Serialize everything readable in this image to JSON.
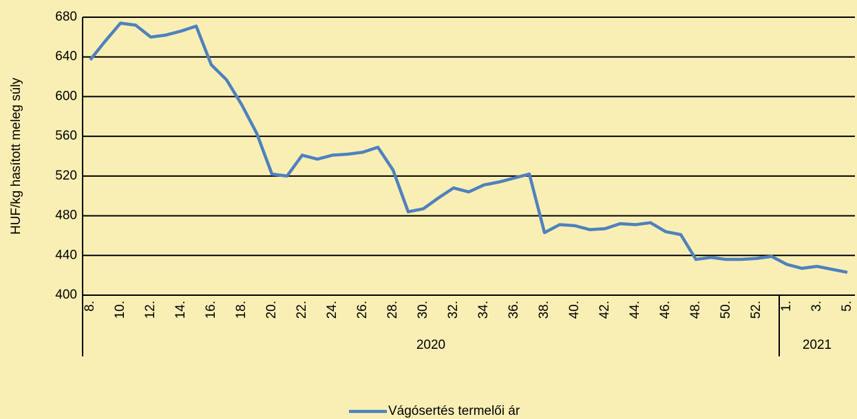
{
  "chart_data": {
    "type": "line",
    "y_label": "HUF/kg hasított meleg súly",
    "categories": [
      "8.",
      null,
      "10.",
      null,
      "12.",
      null,
      "14.",
      null,
      "16.",
      null,
      "18.",
      null,
      "20.",
      null,
      "22.",
      null,
      "24.",
      null,
      "26.",
      null,
      "28.",
      null,
      "30.",
      null,
      "32.",
      null,
      "34.",
      null,
      "36.",
      null,
      "38.",
      null,
      "40.",
      null,
      "42.",
      null,
      "44.",
      null,
      "46.",
      null,
      "48.",
      null,
      "50.",
      null,
      "52.",
      null,
      "1.",
      null,
      "3.",
      null,
      "5."
    ],
    "groups": [
      {
        "label": "2020",
        "count": 46
      },
      {
        "label": "2021",
        "count": 5
      }
    ],
    "series": [
      {
        "name": "Vágósertés termelői ár",
        "color": "#4f81bd",
        "values": [
          637,
          656,
          674,
          672,
          660,
          662,
          666,
          671,
          632,
          617,
          592,
          563,
          522,
          520,
          541,
          537,
          541,
          542,
          544,
          549,
          526,
          484,
          487,
          498,
          508,
          504,
          511,
          514,
          518,
          522,
          463,
          471,
          470,
          466,
          467,
          472,
          471,
          473,
          464,
          461,
          436,
          438,
          436,
          436,
          437,
          439,
          431,
          427,
          429,
          426,
          423
        ]
      }
    ],
    "ylim": [
      400,
      680
    ],
    "yticks": [
      400,
      440,
      480,
      520,
      560,
      600,
      640,
      680
    ],
    "grid": true,
    "legend": "bottom"
  }
}
